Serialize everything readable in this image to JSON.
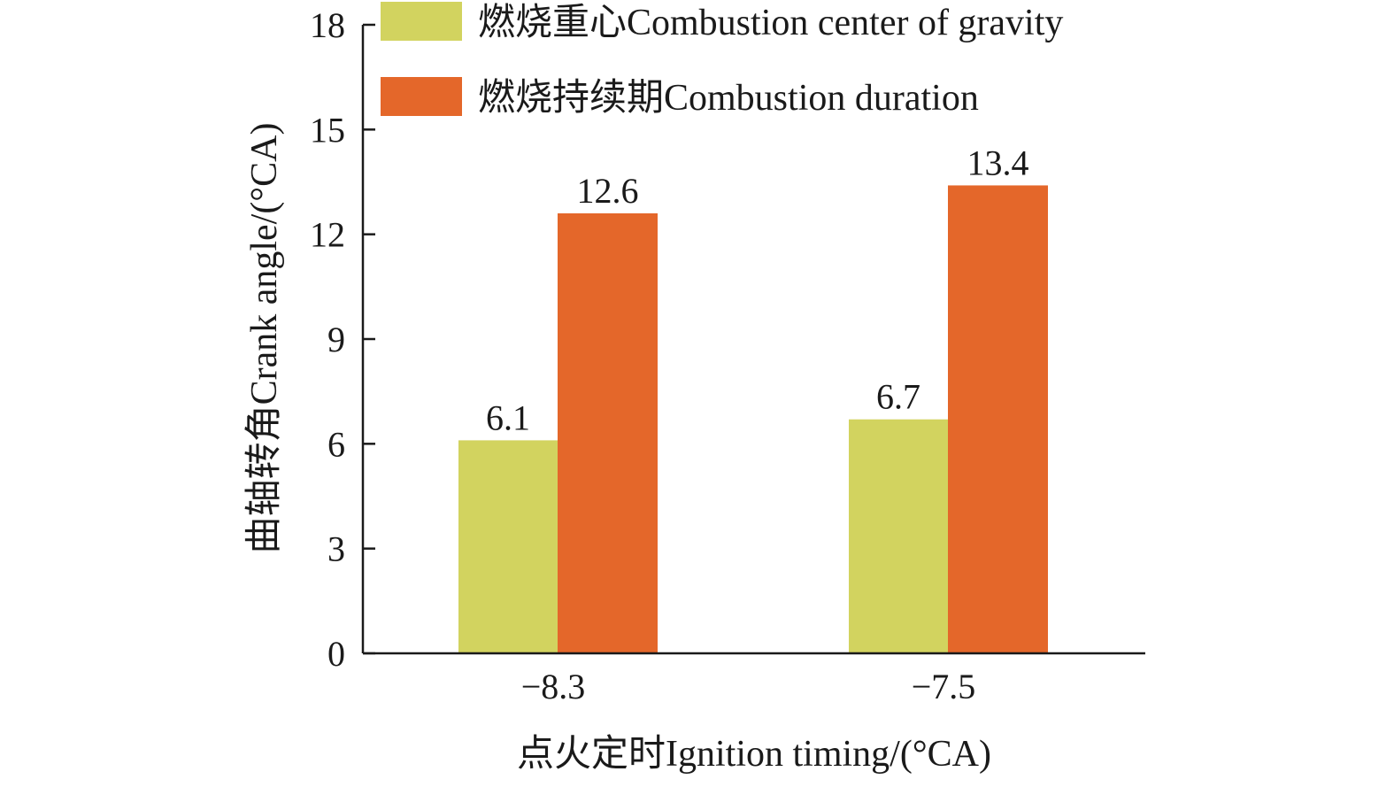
{
  "chart_data": {
    "type": "bar",
    "categories": [
      "−8.3",
      "−7.5"
    ],
    "series": [
      {
        "name": "燃烧重心Combustion center of gravity",
        "values": [
          6.1,
          6.7
        ],
        "color": "#d2d35f"
      },
      {
        "name": "燃烧持续期Combustion duration",
        "values": [
          12.6,
          13.4
        ],
        "color": "#e4672a"
      }
    ],
    "data_labels": [
      [
        "6.1",
        "6.7"
      ],
      [
        "12.6",
        "13.4"
      ]
    ],
    "xlabel": "点火定时Ignition timing/(°CA)",
    "ylabel": "曲轴转角Crank angle/(°CA)",
    "ylim": [
      0,
      18
    ],
    "yticks": [
      0,
      3,
      6,
      9,
      12,
      15,
      18
    ],
    "ytick_labels": [
      "0",
      "3",
      "6",
      "9",
      "12",
      "15",
      "18"
    ],
    "grid": false,
    "legend_position": "top-right"
  }
}
